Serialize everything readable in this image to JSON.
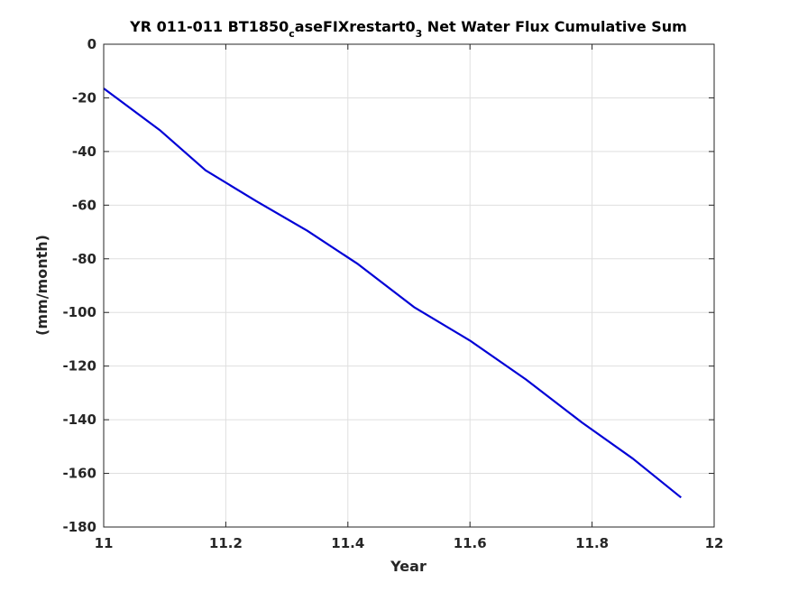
{
  "chart_data": {
    "type": "line",
    "title_parts": {
      "a": "YR 011-011 BT1850",
      "sub1": "c",
      "b": "aseFIXrestart0",
      "sub2": "3",
      "c": " Net Water Flux Cumulative Sum"
    },
    "xlabel": "Year",
    "ylabel": "(mm/month)",
    "xlim": [
      11,
      12
    ],
    "ylim": [
      -180,
      0
    ],
    "xticks": [
      11,
      11.2,
      11.4,
      11.6,
      11.8,
      12
    ],
    "xtick_labels": [
      "11",
      "11.2",
      "11.4",
      "11.6",
      "11.8",
      "12"
    ],
    "yticks": [
      0,
      -20,
      -40,
      -60,
      -80,
      -100,
      -120,
      -140,
      -160,
      -180
    ],
    "ytick_labels": [
      "0",
      "-20",
      "-40",
      "-60",
      "-80",
      "-100",
      "-120",
      "-140",
      "-160",
      "-180"
    ],
    "grid": true,
    "series": [
      {
        "color": "#0000d6",
        "x": [
          11.0,
          11.0917,
          11.1667,
          11.25,
          11.3333,
          11.4167,
          11.5083,
          11.6,
          11.6917,
          11.7833,
          11.8667,
          11.9458
        ],
        "y": [
          -16.5,
          -32,
          -47,
          -58.5,
          -69.5,
          -82,
          -98,
          -110.5,
          -125,
          -141,
          -154.5,
          -169
        ]
      }
    ]
  }
}
